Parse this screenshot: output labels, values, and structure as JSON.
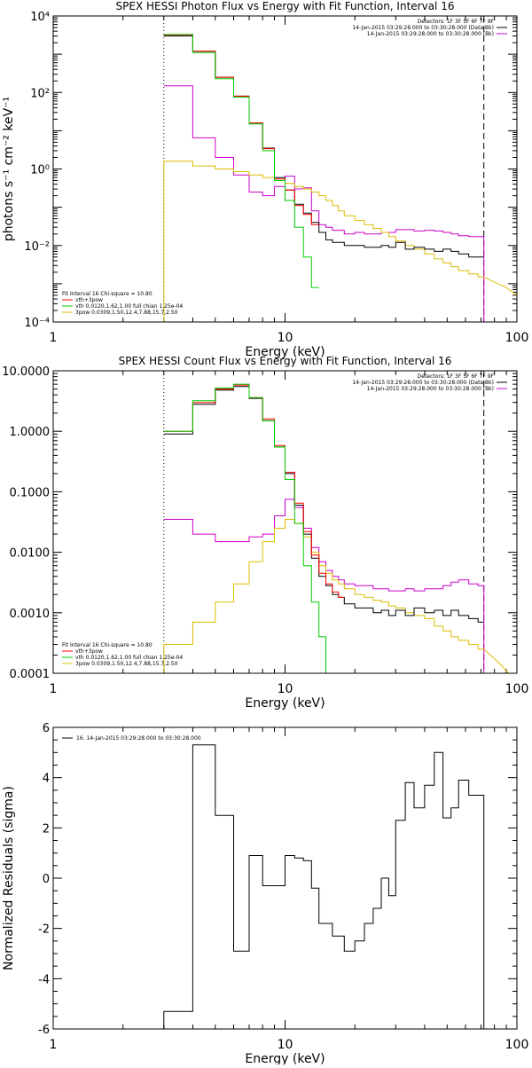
{
  "chart_data": [
    {
      "type": "line",
      "title": "SPEX HESSI Photon Flux vs Energy with Fit Function, Interval 16",
      "xlabel": "Energy (keV)",
      "ylabel": "photons s⁻¹ cm⁻² keV⁻¹",
      "xscale": "log",
      "yscale": "log",
      "xlim": [
        1,
        100
      ],
      "ylim": [
        0.0001,
        10000
      ],
      "x_ticks": [
        {
          "value": 1,
          "label": "1"
        },
        {
          "value": 10,
          "label": "10"
        },
        {
          "value": 100,
          "label": "100"
        }
      ],
      "y_ticks": [
        {
          "value": 0.0001,
          "label": "10⁻⁴"
        },
        {
          "value": 0.01,
          "label": "10⁻²"
        },
        {
          "value": 1,
          "label": "10⁰"
        },
        {
          "value": 100,
          "label": "10²"
        },
        {
          "value": 10000,
          "label": "10⁴"
        }
      ],
      "vlines": [
        {
          "x": 3.0,
          "style": "dotted"
        },
        {
          "x": 72.0,
          "style": "dashed"
        }
      ],
      "legend_topright": [
        {
          "text": "Detectors: 1F 3F 5F 6F 7F 9F",
          "color": ""
        },
        {
          "text": "14-Jan-2015 03:29:28.000 to 03:30:28.000 (Data-Bk)",
          "color": "#000000"
        },
        {
          "text": "14-Jan-2015 03:29:28.000 to 03:30:28.000 (Bk)",
          "color": "#cc00cc"
        }
      ],
      "legend_bottomleft": [
        {
          "text": "Fit Interval 16   Chi-square = 10.80",
          "color": ""
        },
        {
          "text": "vth+3pow",
          "color": "#ff0000"
        },
        {
          "text": "vth 0.0120,1.62,1.00  full chian 1.25e-04",
          "color": "#00cc00"
        },
        {
          "text": "3pow 0.0309,1.50,12.4,7.88,15.7,2.50",
          "color": "#ddbb00"
        }
      ],
      "edges": [
        3.0,
        3.5,
        4.0,
        4.5,
        5.0,
        5.5,
        6.0,
        6.5,
        7.0,
        7.5,
        8.0,
        8.5,
        9.0,
        9.5,
        10.0,
        11.0,
        12.0,
        13.0,
        14.0,
        15.0,
        16.0,
        17.0,
        18.0,
        20.0,
        22.0,
        24.0,
        26.0,
        28.0,
        30.0,
        33.0,
        36.0,
        40.0,
        44.0,
        48.0,
        52.0,
        56.0,
        62.0,
        68.0,
        72.0
      ],
      "series": [
        {
          "name": "",
          "color": "#000000",
          "style": "step",
          "values": [
            3000,
            3000,
            1200,
            1200,
            250,
            250,
            80,
            80,
            16,
            16,
            3.5,
            3.5,
            0.6,
            0.6,
            0.28,
            0.12,
            0.07,
            0.04,
            0.022,
            0.014,
            0.012,
            0.012,
            0.01,
            0.01,
            0.009,
            0.009,
            0.01,
            0.009,
            0.012,
            0.008,
            0.009,
            0.008,
            0.007,
            0.008,
            0.007,
            0.006,
            0.005,
            0.005
          ]
        },
        {
          "name": "",
          "color": "#ff0000",
          "style": "step",
          "values": [
            3200,
            3200,
            1200,
            1200,
            250,
            250,
            80,
            80,
            16,
            16,
            3.4,
            3.4,
            0.55,
            0.55,
            0.28,
            0.11,
            0.065,
            0.035
          ]
        },
        {
          "name": "",
          "color": "#00cc00",
          "style": "step",
          "values": [
            3300,
            3300,
            1100,
            1100,
            230,
            230,
            75,
            75,
            15,
            15,
            3.0,
            3.0,
            0.5,
            0.5,
            0.15,
            0.03,
            0.005,
            0.0008
          ]
        },
        {
          "name": "",
          "color": "#cc00cc",
          "style": "step",
          "values": [
            150,
            150,
            6.5,
            6.5,
            2.0,
            2.0,
            0.7,
            0.7,
            0.25,
            0.25,
            0.2,
            0.2,
            0.35,
            0.35,
            0.65,
            0.3,
            0.32,
            0.08,
            0.035,
            0.03,
            0.025,
            0.025,
            0.02,
            0.022,
            0.02,
            0.02,
            0.022,
            0.022,
            0.026,
            0.026,
            0.024,
            0.025,
            0.024,
            0.022,
            0.02,
            0.018,
            0.017,
            0.017
          ]
        },
        {
          "name": "",
          "color": "#ddbb00",
          "style": "step",
          "values": [
            1.6,
            1.6,
            1.2,
            1.2,
            1.0,
            1.0,
            0.85,
            0.85,
            0.7,
            0.7,
            0.6,
            0.6,
            0.5,
            0.5,
            0.42,
            0.35,
            0.3,
            0.25,
            0.2,
            0.15,
            0.11,
            0.08,
            0.06,
            0.045,
            0.035,
            0.028,
            0.022,
            0.017,
            0.013,
            0.01,
            0.008,
            0.006,
            0.0045,
            0.0035,
            0.0028,
            0.0022,
            0.0018,
            0.0015
          ]
        },
        {
          "name": "",
          "color": "#ddbb00",
          "style": "line",
          "x": [
            72,
            80,
            90,
            100
          ],
          "values": [
            0.0015,
            0.0011,
            0.0008,
            0.0005
          ]
        }
      ]
    },
    {
      "type": "line",
      "title": "SPEX HESSI Count Flux vs Energy with Fit Function, Interval 16",
      "xlabel": "Energy (keV)",
      "ylabel": "",
      "xscale": "log",
      "yscale": "log",
      "xlim": [
        1,
        100
      ],
      "ylim": [
        0.0001,
        10
      ],
      "x_ticks": [
        {
          "value": 1,
          "label": "1"
        },
        {
          "value": 10,
          "label": "10"
        },
        {
          "value": 100,
          "label": "100"
        }
      ],
      "y_ticks": [
        {
          "value": 0.0001,
          "label": "0.0001"
        },
        {
          "value": 0.001,
          "label": "0.0010"
        },
        {
          "value": 0.01,
          "label": "0.0100"
        },
        {
          "value": 0.1,
          "label": "0.1000"
        },
        {
          "value": 1,
          "label": "1.0000"
        },
        {
          "value": 10,
          "label": "10.0000"
        }
      ],
      "vlines": [
        {
          "x": 3.0,
          "style": "dotted"
        },
        {
          "x": 72.0,
          "style": "dashed"
        }
      ],
      "legend_topright": [
        {
          "text": "Detectors: 1F 3F 5F 6F 7F 9F",
          "color": ""
        },
        {
          "text": "14-Jan-2015 03:29:28.000 to 03:30:28.000 (Data-Bk)",
          "color": "#000000"
        },
        {
          "text": "14-Jan-2015 03:29:28.000 to 03:30:28.000 (Bk)",
          "color": "#cc00cc"
        }
      ],
      "legend_bottomleft": [
        {
          "text": "Fit Interval 16   Chi-square = 10.80",
          "color": ""
        },
        {
          "text": "vth+3pow",
          "color": "#ff0000"
        },
        {
          "text": "vth 0.0120,1.62,1.00  full chian 1.25e-04",
          "color": "#00cc00"
        },
        {
          "text": "3pow 0.0309,1.50,12.4,7.88,15.7,2.50",
          "color": "#ddbb00"
        }
      ],
      "edges": [
        3.0,
        3.5,
        4.0,
        4.5,
        5.0,
        5.5,
        6.0,
        6.5,
        7.0,
        7.5,
        8.0,
        8.5,
        9.0,
        9.5,
        10.0,
        11.0,
        12.0,
        13.0,
        14.0,
        15.0,
        16.0,
        17.0,
        18.0,
        20.0,
        22.0,
        24.0,
        26.0,
        28.0,
        30.0,
        33.0,
        36.0,
        40.0,
        44.0,
        48.0,
        52.0,
        56.0,
        62.0,
        68.0,
        72.0
      ],
      "series": [
        {
          "name": "",
          "color": "#000000",
          "style": "step",
          "values": [
            0.9,
            0.9,
            2.8,
            2.8,
            4.8,
            4.8,
            5.5,
            5.5,
            3.5,
            3.5,
            1.5,
            1.5,
            0.55,
            0.55,
            0.2,
            0.06,
            0.02,
            0.008,
            0.004,
            0.0028,
            0.002,
            0.0018,
            0.0014,
            0.0012,
            0.0012,
            0.001,
            0.0011,
            0.0009,
            0.0011,
            0.0009,
            0.0012,
            0.001,
            0.0011,
            0.0009,
            0.0011,
            0.0009,
            0.0008,
            0.0007
          ]
        },
        {
          "name": "",
          "color": "#ff0000",
          "style": "step",
          "values": [
            1.0,
            1.0,
            3.0,
            3.0,
            5.0,
            5.0,
            5.8,
            5.8,
            3.6,
            3.6,
            1.6,
            1.6,
            0.58,
            0.58,
            0.21,
            0.065,
            0.022,
            0.009,
            0.0045,
            0.003,
            0.0022,
            0.0018
          ]
        },
        {
          "name": "",
          "color": "#00cc00",
          "style": "step",
          "values": [
            1.0,
            1.0,
            3.2,
            3.2,
            5.2,
            5.2,
            6.0,
            6.0,
            3.6,
            3.6,
            1.5,
            1.5,
            0.55,
            0.55,
            0.16,
            0.03,
            0.006,
            0.0015,
            0.0004,
            0.0001
          ]
        },
        {
          "name": "",
          "color": "#cc00cc",
          "style": "step",
          "values": [
            0.035,
            0.035,
            0.02,
            0.02,
            0.015,
            0.015,
            0.015,
            0.015,
            0.018,
            0.018,
            0.02,
            0.02,
            0.04,
            0.04,
            0.075,
            0.055,
            0.025,
            0.012,
            0.007,
            0.005,
            0.004,
            0.0035,
            0.003,
            0.0028,
            0.0028,
            0.0025,
            0.0025,
            0.0023,
            0.0023,
            0.0025,
            0.0023,
            0.0025,
            0.0025,
            0.0028,
            0.0032,
            0.0035,
            0.003,
            0.0028
          ]
        },
        {
          "name": "",
          "color": "#ddbb00",
          "style": "step",
          "values": [
            0.0003,
            0.0003,
            0.0007,
            0.0007,
            0.0015,
            0.0015,
            0.003,
            0.003,
            0.007,
            0.007,
            0.015,
            0.015,
            0.025,
            0.025,
            0.035,
            0.03,
            0.018,
            0.01,
            0.006,
            0.0045,
            0.0035,
            0.003,
            0.0025,
            0.002,
            0.0018,
            0.0016,
            0.0015,
            0.0013,
            0.0012,
            0.001,
            0.0009,
            0.0008,
            0.0006,
            0.0005,
            0.0004,
            0.00035,
            0.0003,
            0.00025
          ]
        },
        {
          "name": "",
          "color": "#ddbb00",
          "style": "line",
          "x": [
            72,
            85,
            92
          ],
          "values": [
            0.00025,
            0.00014,
            0.0001
          ]
        }
      ]
    },
    {
      "type": "line",
      "title": "",
      "xlabel": "Energy (keV)",
      "ylabel": "Normalized Residuals (sigma)",
      "xscale": "log",
      "yscale": "linear",
      "xlim": [
        1,
        100
      ],
      "ylim": [
        -6,
        6
      ],
      "x_ticks": [
        {
          "value": 1,
          "label": "1"
        },
        {
          "value": 10,
          "label": "10"
        },
        {
          "value": 100,
          "label": "100"
        }
      ],
      "y_ticks": [
        {
          "value": -6,
          "label": "-6"
        },
        {
          "value": -4,
          "label": "-4"
        },
        {
          "value": -2,
          "label": "-2"
        },
        {
          "value": 0,
          "label": "0"
        },
        {
          "value": 2,
          "label": "2"
        },
        {
          "value": 4,
          "label": "4"
        },
        {
          "value": 6,
          "label": "6"
        }
      ],
      "vlines": [],
      "legend_topleft": [
        {
          "text": "16. 14-Jan-2015 03:29:28.000 to 03:30:28.000",
          "color": "#000000"
        }
      ],
      "edges": [
        3.0,
        4.0,
        5.0,
        6.0,
        7.0,
        8.0,
        9.0,
        10.0,
        11.0,
        12.0,
        13.0,
        14.0,
        16.0,
        18.0,
        20.0,
        22.0,
        24.0,
        26.0,
        28.0,
        30.0,
        33.0,
        36.0,
        40.0,
        44.0,
        48.0,
        52.0,
        56.0,
        62.0,
        68.0,
        72.0
      ],
      "series": [
        {
          "name": "16. 14-Jan-2015 03:29:28.000 to 03:30:28.000",
          "color": "#000000",
          "style": "step",
          "drop_to": -6,
          "values": [
            -5.3,
            5.3,
            2.5,
            -2.9,
            0.9,
            -0.3,
            -0.3,
            0.9,
            0.8,
            0.7,
            -0.4,
            -1.8,
            -2.3,
            -2.9,
            -2.5,
            -1.8,
            -1.2,
            0.0,
            -0.7,
            2.3,
            3.8,
            2.8,
            3.7,
            5.0,
            2.4,
            2.8,
            3.9,
            3.3,
            3.3
          ]
        }
      ]
    }
  ]
}
